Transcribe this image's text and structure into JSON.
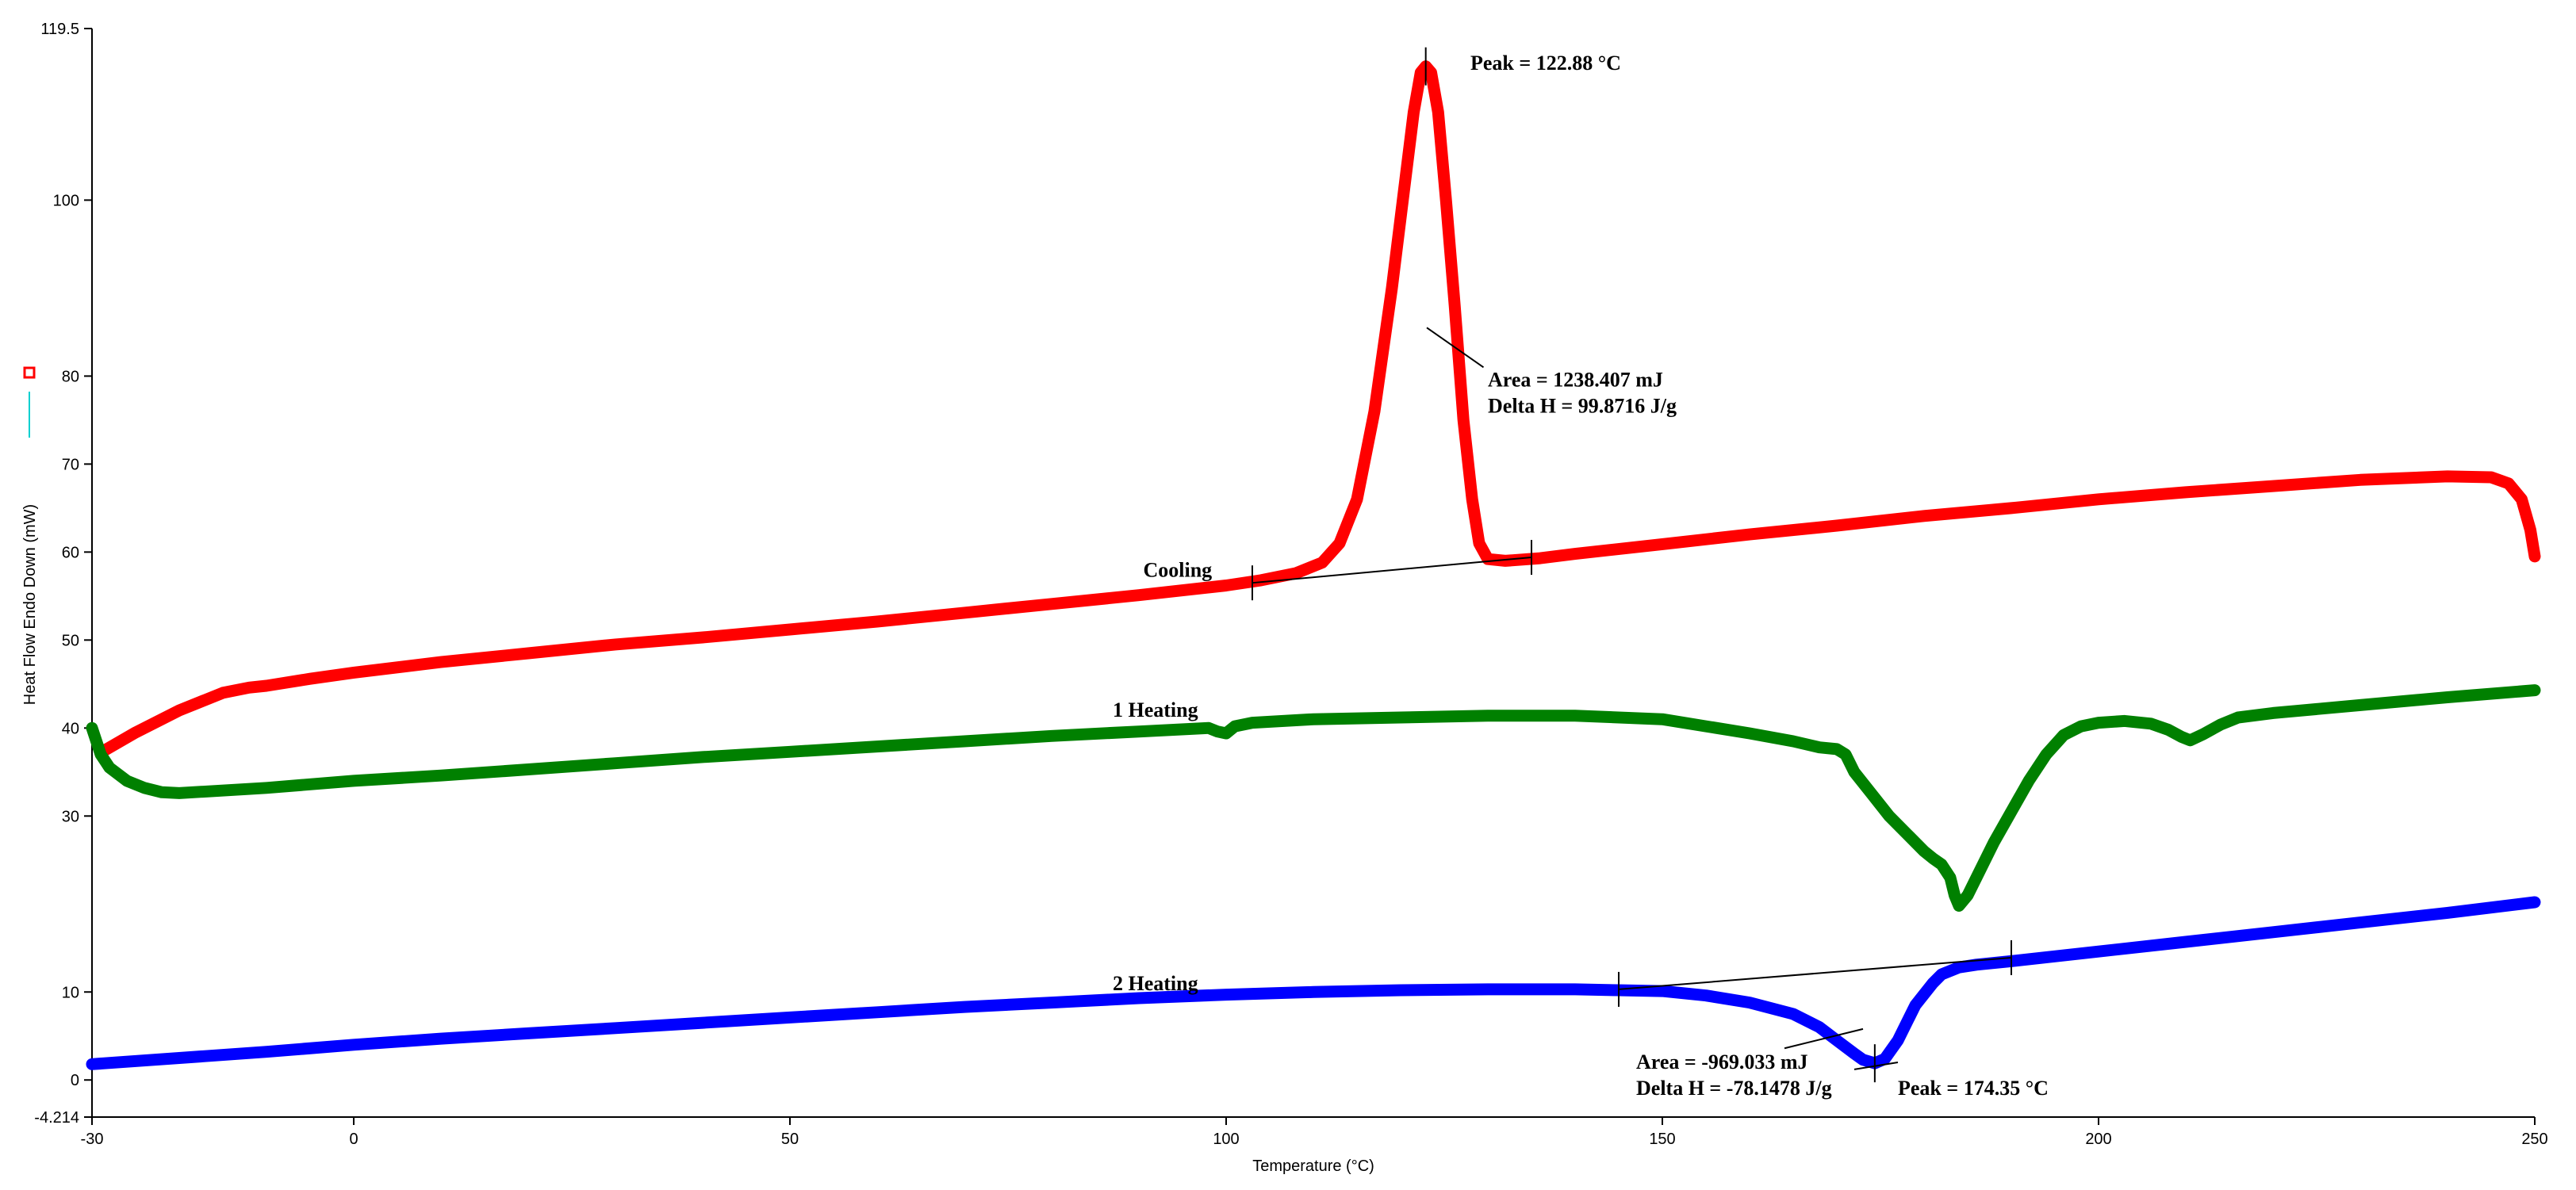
{
  "chart_data": {
    "type": "line",
    "title": "",
    "xlabel": "Temperature (°C)",
    "ylabel": "Heat Flow Endo Down (mW)",
    "xlim": [
      -30,
      250
    ],
    "ylim": [
      -4.214,
      119.5
    ],
    "x_ticks": [
      -30,
      0,
      50,
      100,
      150,
      200,
      250
    ],
    "y_ticks": [
      -4.214,
      0,
      10,
      30,
      40,
      50,
      60,
      70,
      80,
      100,
      119.5
    ],
    "y_tick_labels": [
      "-4.214",
      "0",
      "10",
      "30",
      "40",
      "50",
      "60",
      "70",
      "80",
      "100",
      "119.5"
    ],
    "grid": false,
    "legend": {
      "placement": "left",
      "entries": []
    },
    "series": [
      {
        "name": "Cooling",
        "color": "#ff0000",
        "points": [
          [
            -28.5,
            37.5
          ],
          [
            -25,
            39.5
          ],
          [
            -20,
            42
          ],
          [
            -15,
            44
          ],
          [
            -12,
            44.6
          ],
          [
            -10,
            44.8
          ],
          [
            -5,
            45.6
          ],
          [
            0,
            46.3
          ],
          [
            10,
            47.5
          ],
          [
            20,
            48.5
          ],
          [
            30,
            49.5
          ],
          [
            40,
            50.3
          ],
          [
            50,
            51.2
          ],
          [
            60,
            52.1
          ],
          [
            70,
            53.1
          ],
          [
            80,
            54.1
          ],
          [
            90,
            55.1
          ],
          [
            100,
            56.2
          ],
          [
            104,
            56.8
          ],
          [
            108,
            57.6
          ],
          [
            111,
            58.8
          ],
          [
            113,
            61
          ],
          [
            115,
            66
          ],
          [
            117,
            76
          ],
          [
            119,
            90
          ],
          [
            120.5,
            102
          ],
          [
            121.5,
            110
          ],
          [
            122.3,
            114.5
          ],
          [
            122.88,
            115.2
          ],
          [
            123.5,
            114.5
          ],
          [
            124.3,
            110
          ],
          [
            125.2,
            100
          ],
          [
            126.2,
            88
          ],
          [
            127.2,
            75
          ],
          [
            128.2,
            66
          ],
          [
            129,
            61
          ],
          [
            130,
            59.2
          ],
          [
            132,
            59
          ],
          [
            136,
            59.3
          ],
          [
            140,
            59.8
          ],
          [
            150,
            60.9
          ],
          [
            160,
            62
          ],
          [
            170,
            63
          ],
          [
            180,
            64.1
          ],
          [
            190,
            65
          ],
          [
            200,
            66
          ],
          [
            210,
            66.8
          ],
          [
            220,
            67.5
          ],
          [
            230,
            68.2
          ],
          [
            240,
            68.6
          ],
          [
            245,
            68.5
          ],
          [
            247,
            67.8
          ],
          [
            248.5,
            66
          ],
          [
            249.5,
            62.5
          ],
          [
            250,
            59.5
          ]
        ]
      },
      {
        "name": "1 Heating",
        "color": "#008000",
        "points": [
          [
            -30,
            40
          ],
          [
            -29,
            37
          ],
          [
            -28,
            35.5
          ],
          [
            -26,
            34
          ],
          [
            -24,
            33.2
          ],
          [
            -22,
            32.7
          ],
          [
            -20,
            32.6
          ],
          [
            -10,
            33.2
          ],
          [
            0,
            34
          ],
          [
            10,
            34.6
          ],
          [
            20,
            35.3
          ],
          [
            30,
            36
          ],
          [
            40,
            36.7
          ],
          [
            50,
            37.3
          ],
          [
            60,
            37.9
          ],
          [
            70,
            38.5
          ],
          [
            80,
            39.1
          ],
          [
            90,
            39.6
          ],
          [
            98,
            40
          ],
          [
            99,
            39.6
          ],
          [
            100,
            39.4
          ],
          [
            101,
            40.2
          ],
          [
            103,
            40.6
          ],
          [
            110,
            41
          ],
          [
            120,
            41.2
          ],
          [
            130,
            41.4
          ],
          [
            140,
            41.4
          ],
          [
            150,
            41
          ],
          [
            155,
            40.2
          ],
          [
            160,
            39.4
          ],
          [
            165,
            38.5
          ],
          [
            168,
            37.8
          ],
          [
            170,
            37.6
          ],
          [
            171,
            37
          ],
          [
            172,
            35
          ],
          [
            174,
            32.5
          ],
          [
            176,
            30
          ],
          [
            178,
            28
          ],
          [
            180,
            26
          ],
          [
            181,
            25.2
          ],
          [
            182,
            24.5
          ],
          [
            183,
            23
          ],
          [
            183.5,
            21
          ],
          [
            184,
            19.8
          ],
          [
            185,
            21
          ],
          [
            186,
            23
          ],
          [
            188,
            27
          ],
          [
            190,
            30.5
          ],
          [
            192,
            34
          ],
          [
            194,
            37
          ],
          [
            196,
            39.2
          ],
          [
            198,
            40.2
          ],
          [
            200,
            40.6
          ],
          [
            203,
            40.8
          ],
          [
            206,
            40.5
          ],
          [
            208,
            39.8
          ],
          [
            209.5,
            39
          ],
          [
            210.5,
            38.6
          ],
          [
            212,
            39.3
          ],
          [
            214,
            40.4
          ],
          [
            216,
            41.2
          ],
          [
            220,
            41.7
          ],
          [
            230,
            42.6
          ],
          [
            240,
            43.5
          ],
          [
            250,
            44.3
          ]
        ]
      },
      {
        "name": "2 Heating",
        "color": "#0000ff",
        "points": [
          [
            -30,
            1.8
          ],
          [
            -20,
            2.5
          ],
          [
            -10,
            3.2
          ],
          [
            0,
            4
          ],
          [
            10,
            4.7
          ],
          [
            20,
            5.3
          ],
          [
            30,
            5.9
          ],
          [
            40,
            6.5
          ],
          [
            50,
            7.1
          ],
          [
            60,
            7.7
          ],
          [
            70,
            8.3
          ],
          [
            80,
            8.8
          ],
          [
            90,
            9.3
          ],
          [
            100,
            9.7
          ],
          [
            110,
            10
          ],
          [
            120,
            10.2
          ],
          [
            130,
            10.3
          ],
          [
            140,
            10.3
          ],
          [
            145,
            10.2
          ],
          [
            150,
            10.1
          ],
          [
            155,
            9.6
          ],
          [
            160,
            8.8
          ],
          [
            165,
            7.5
          ],
          [
            168,
            6
          ],
          [
            170,
            4.5
          ],
          [
            172,
            3
          ],
          [
            173,
            2.3
          ],
          [
            174.35,
            1.9
          ],
          [
            175.5,
            2.4
          ],
          [
            177,
            4.5
          ],
          [
            179,
            8.5
          ],
          [
            181,
            11
          ],
          [
            182,
            12
          ],
          [
            184,
            12.8
          ],
          [
            186,
            13.1
          ],
          [
            190,
            13.5
          ],
          [
            200,
            14.6
          ],
          [
            210,
            15.7
          ],
          [
            220,
            16.8
          ],
          [
            230,
            17.9
          ],
          [
            240,
            19
          ],
          [
            250,
            20.2
          ]
        ]
      }
    ],
    "baselines": [
      {
        "series": "Cooling",
        "points": [
          [
            103,
            56.5
          ],
          [
            135,
            59.4
          ]
        ],
        "color": "#000000"
      },
      {
        "series": "2 Heating",
        "points": [
          [
            145,
            10.3
          ],
          [
            190,
            13.9
          ]
        ],
        "color": "#000000"
      }
    ],
    "peak_markers": [
      {
        "series": "Cooling",
        "x": 122.88,
        "y": 115.2
      },
      {
        "series": "2 Heating",
        "x": 174.35,
        "y": 1.9
      }
    ],
    "leader_lines": [
      {
        "from": [
          123,
          85.5
        ],
        "to": [
          129.5,
          81
        ]
      },
      {
        "from": [
          164,
          3.6
        ],
        "to": [
          173,
          5.8
        ]
      },
      {
        "from": [
          172,
          1.2
        ],
        "to": [
          177,
          2
        ]
      }
    ],
    "annotations": [
      {
        "id": "peak1",
        "lines": [
          "Peak = 122.88 °C"
        ],
        "x": 128,
        "y": 114.8
      },
      {
        "id": "area1",
        "lines": [
          "Area = 1238.407 mJ",
          "Delta H = 99.8716 J/g"
        ],
        "x": 130,
        "y": 78.8
      },
      {
        "id": "area2",
        "lines": [
          "Area = -969.033 mJ",
          "Delta H = -78.1478 J/g"
        ],
        "x": 147,
        "y": 1.3
      },
      {
        "id": "peak2",
        "lines": [
          "Peak = 174.35 °C"
        ],
        "x": 177,
        "y": -1.7
      }
    ],
    "curve_labels": [
      {
        "text": "Cooling",
        "x": 90.5,
        "y": 57.2
      },
      {
        "text": "1 Heating",
        "x": 87,
        "y": 41.3
      },
      {
        "text": "2 Heating",
        "x": 87,
        "y": 10.2
      }
    ]
  }
}
